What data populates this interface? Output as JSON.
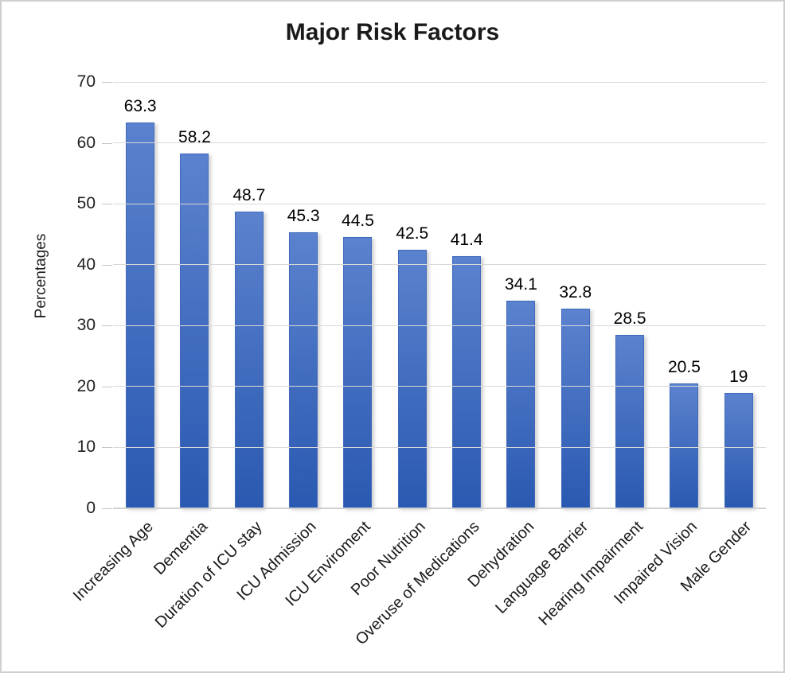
{
  "chart_data": {
    "type": "bar",
    "title": "Major Risk Factors",
    "xlabel": "",
    "ylabel": "Percentages",
    "categories": [
      "Increasing Age",
      "Dementia",
      "Duration of ICU stay",
      "ICU Admission",
      "ICU Enviroment",
      "Poor Nutrition",
      "Overuse of Medications",
      "Dehydration",
      "Language Barrier",
      "Hearing Impairment",
      "Impaired Vision",
      "Male Gender"
    ],
    "values": [
      63.3,
      58.2,
      48.7,
      45.3,
      44.5,
      42.5,
      41.4,
      34.1,
      32.8,
      28.5,
      20.5,
      19
    ],
    "data_labels": [
      "63.3",
      "58.2",
      "48.7",
      "45.3",
      "44.5",
      "42.5",
      "41.4",
      "34.1",
      "32.8",
      "28.5",
      "20.5",
      "19"
    ],
    "ylim": [
      0,
      70
    ],
    "yticks": [
      0,
      10,
      20,
      30,
      40,
      50,
      60,
      70
    ],
    "grid": "horizontal gridlines on, no vertical gridlines",
    "legend_position": "none",
    "colors": {
      "bar_gradient_top": "#5b82ce",
      "bar_gradient_bottom": "#2a59b1",
      "bar_border": "#3f6abc",
      "gridline": "#d9d9d9",
      "axis_line": "#d0d0d0",
      "tick_mark": "#c6c6c6",
      "title_text": "#1a1a1a",
      "label_text": "#1a1a1a",
      "figure_border": "#cfcfcf",
      "background": "#ffffff"
    }
  }
}
